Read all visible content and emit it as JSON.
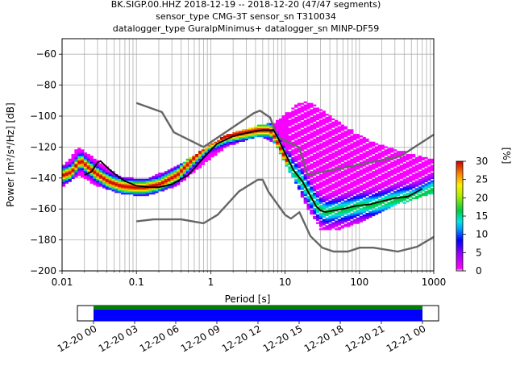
{
  "chart_data": {
    "type": "heatmap",
    "title_lines": [
      "BK.SIGP.00.HHZ   2018-12-19 -- 2018-12-20  (47/47 segments)",
      "sensor_type CMG-3T sensor_sn T310034",
      "datalogger_type GuralpMinimus+ datalogger_sn MINP-DF59"
    ],
    "xlabel": "Period [s]",
    "ylabel": "Power [m²/s⁴/Hz] [dB]",
    "xscale": "log",
    "xlim": [
      0.01,
      1000
    ],
    "ylim": [
      -200,
      -50
    ],
    "grid": true,
    "x_ticks": [
      "0.01",
      "0.1",
      "1",
      "10",
      "100",
      "1000"
    ],
    "y_ticks": [
      "-200",
      "-180",
      "-160",
      "-140",
      "-120",
      "-100",
      "-80",
      "-60"
    ],
    "colorbar": {
      "label": "[%]",
      "range": [
        0,
        30
      ],
      "ticks": [
        "0",
        "5",
        "10",
        "15",
        "20",
        "25",
        "30"
      ]
    },
    "series": [
      {
        "role": "new high noise model",
        "color": "#666666",
        "x": [
          0.1,
          0.22,
          0.32,
          0.8,
          3.8,
          4.6,
          6.3,
          7.9,
          15.4,
          20,
          354.8,
          1000
        ],
        "y": [
          -91.5,
          -97.4,
          -110.5,
          -120,
          -98,
          -96.5,
          -101,
          -113.5,
          -120,
          -138,
          -126,
          -112
        ]
      },
      {
        "role": "new low noise model",
        "color": "#666666",
        "x": [
          0.1,
          0.17,
          0.4,
          0.8,
          1.24,
          2.4,
          4.3,
          5,
          6,
          10,
          12,
          15.6,
          21.9,
          31.6,
          45,
          70,
          101,
          154,
          328,
          600,
          1000
        ],
        "y": [
          -168,
          -166.7,
          -166.7,
          -169.2,
          -163.7,
          -148.6,
          -141.1,
          -141.1,
          -149,
          -163.8,
          -166.2,
          -162.1,
          -177.5,
          -185,
          -187.5,
          -187.5,
          -185,
          -185,
          -187.5,
          -184.4,
          -178
        ]
      },
      {
        "role": "mode",
        "color": "#000000",
        "x": [
          0.02,
          0.025,
          0.03,
          0.033,
          0.04,
          0.05,
          0.07,
          0.1,
          0.15,
          0.2,
          0.3,
          0.5,
          0.8,
          1.2,
          2,
          3,
          5,
          7,
          8,
          10,
          13,
          17,
          21,
          26,
          30,
          35,
          45,
          60,
          90,
          140,
          200,
          300,
          450,
          700
        ],
        "y": [
          -138,
          -136,
          -130,
          -129,
          -133,
          -137,
          -142,
          -145,
          -146,
          -146,
          -144,
          -138,
          -127,
          -118,
          -113,
          -111,
          -109,
          -109,
          -114,
          -124,
          -135,
          -142,
          -150,
          -158,
          -161,
          -162,
          -161,
          -160,
          -158,
          -157,
          -155,
          -153,
          -152,
          -147
        ]
      }
    ],
    "density": {
      "low_curve": {
        "x": [
          0.02,
          0.03,
          0.05,
          0.1,
          0.2,
          0.5,
          1,
          2,
          5,
          8,
          10,
          15,
          20,
          30,
          50,
          100,
          200,
          500,
          700
        ],
        "y": [
          -145,
          -138,
          -145,
          -150,
          -152,
          -145,
          -132,
          -120,
          -113,
          -118,
          -128,
          -145,
          -160,
          -174,
          -173,
          -168,
          -160,
          -152,
          -150
        ]
      },
      "high_curve": {
        "x": [
          0.02,
          0.03,
          0.05,
          0.1,
          0.2,
          0.5,
          1,
          2,
          5,
          8,
          10,
          15,
          20,
          30,
          50,
          100,
          200,
          500,
          700
        ],
        "y": [
          -132,
          -120,
          -128,
          -139,
          -141,
          -132,
          -122,
          -112,
          -106,
          -104,
          -100,
          -92,
          -90,
          -96,
          -104,
          -114,
          -120,
          -126,
          -128
        ]
      }
    },
    "time_coverage": {
      "tick_labels": [
        "12-20 00",
        "12-20 03",
        "12-20 06",
        "12-20 09",
        "12-20 12",
        "12-20 15",
        "12-20 18",
        "12-20 21",
        "12-21 00"
      ],
      "bars": [
        {
          "color": "#008000",
          "start": 0,
          "end": 1,
          "fraction": 0.25
        },
        {
          "color": "#0000ff",
          "start": 0,
          "end": 1,
          "fraction": 0.75
        }
      ]
    }
  }
}
